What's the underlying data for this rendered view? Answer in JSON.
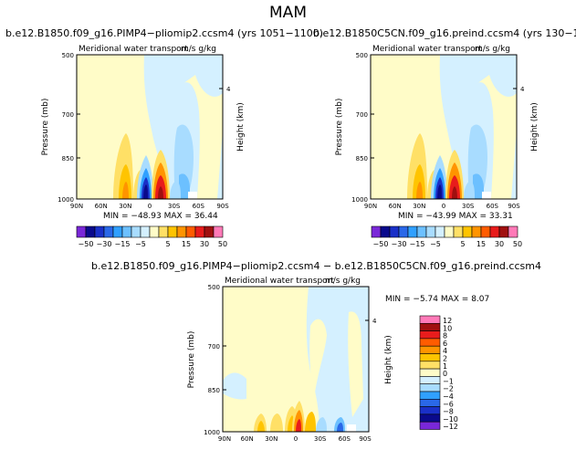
{
  "figure_title": "MAM",
  "panels": [
    {
      "title": "b.e12.B1850.f09_g16.PIMP4−pliomip2.ccsm4  (yrs 1051−1100)",
      "subtitle": "Meridional water transport",
      "units": "m/s g/kg",
      "ylabel": "Pressure (mb)",
      "ylabel_right": "Height (km)",
      "yticks": [
        "500",
        "700",
        "850",
        "1000"
      ],
      "yticks_right": [
        "4"
      ],
      "xticks": [
        "90N",
        "60N",
        "30N",
        "0",
        "30S",
        "60S",
        "90S"
      ],
      "stats_text": "MIN = −48.93   MAX =  36.44"
    },
    {
      "title": "b.e12.B1850C5CN.f09_g16.preind.ccsm4  (yrs 130−179)",
      "subtitle": "Meridional water transport",
      "units": "m/s g/kg",
      "ylabel": "Pressure (mb)",
      "ylabel_right": "Height (km)",
      "yticks": [
        "500",
        "700",
        "850",
        "1000"
      ],
      "yticks_right": [
        "4"
      ],
      "xticks": [
        "90N",
        "60N",
        "30N",
        "0",
        "30S",
        "60S",
        "90S"
      ],
      "stats_text": "MIN = −43.99   MAX =  33.31"
    },
    {
      "title": "b.e12.B1850.f09_g16.PIMP4−pliomip2.ccsm4 − b.e12.B1850C5CN.f09_g16.preind.ccsm4",
      "subtitle": "Meridional water transport",
      "units": "m/s g/kg",
      "ylabel": "Pressure (mb)",
      "ylabel_right": "Height (km)",
      "yticks": [
        "500",
        "700",
        "850",
        "1000"
      ],
      "yticks_right": [
        "4"
      ],
      "xticks": [
        "90N",
        "60N",
        "30N",
        "0",
        "30S",
        "60S",
        "90S"
      ],
      "stats_text": "MIN =  −5.74   MAX =   8.07"
    }
  ],
  "colorbar_top": {
    "labels": [
      "−50",
      "−30",
      "−15",
      "−5",
      "5",
      "15",
      "30",
      "50"
    ],
    "colors": [
      "#7a28d8",
      "#0a0a8c",
      "#1a30c8",
      "#2a68e8",
      "#30a0ff",
      "#6cc0ff",
      "#a8dcff",
      "#d4f0ff",
      "#fffcc8",
      "#ffe066",
      "#ffc400",
      "#ff9400",
      "#ff5c00",
      "#e81c1c",
      "#a01010",
      "#ff7ab8"
    ]
  },
  "colorbar_diff": {
    "labels": [
      "12",
      "10",
      "8",
      "6",
      "4",
      "2",
      "1",
      "0",
      "−1",
      "−2",
      "−4",
      "−6",
      "−8",
      "−10",
      "−12"
    ],
    "colors": [
      "#ff7ab8",
      "#a01010",
      "#e81c1c",
      "#ff5c00",
      "#ff9400",
      "#ffc400",
      "#ffe066",
      "#fffcc8",
      "#d4f0ff",
      "#a8dcff",
      "#30a0ff",
      "#2a68e8",
      "#1a30c8",
      "#0a0a8c",
      "#7a28d8"
    ]
  },
  "chart_data": [
    {
      "type": "heatmap",
      "title": "b.e12.B1850.f09_g16.PIMP4−pliomip2.ccsm4  (yrs 1051−1100)",
      "xlabel": "",
      "ylabel": "Pressure (mb)",
      "x_categories": [
        "90N",
        "60N",
        "30N",
        "0",
        "30S",
        "60S",
        "90S"
      ],
      "y_range_mb": [
        1000,
        500
      ],
      "min": -48.93,
      "max": 36.44,
      "contour_levels": [
        -50,
        -40,
        -30,
        -20,
        -15,
        -10,
        -5,
        0,
        5,
        10,
        15,
        20,
        30,
        40,
        50
      ],
      "features": [
        {
          "lat": 38,
          "p_low": 1000,
          "p_high": 900,
          "value": 10
        },
        {
          "lat": 20,
          "p_low": 1000,
          "p_high": 850,
          "value": 5
        },
        {
          "lat": 8,
          "p_low": 1000,
          "p_high": 900,
          "value": -40
        },
        {
          "lat": -6,
          "p_low": 1000,
          "p_high": 860,
          "value": 30
        },
        {
          "lat": -36,
          "p_low": 1000,
          "p_high": 900,
          "value": -15
        },
        {
          "lat": -42,
          "p_low": 950,
          "p_high": 740,
          "value": -5
        },
        {
          "lat": -52,
          "p_low": 1000,
          "p_high": 950,
          "value": 5
        }
      ]
    },
    {
      "type": "heatmap",
      "title": "b.e12.B1850C5CN.f09_g16.preind.ccsm4  (yrs 130−179)",
      "xlabel": "",
      "ylabel": "Pressure (mb)",
      "x_categories": [
        "90N",
        "60N",
        "30N",
        "0",
        "30S",
        "60S",
        "90S"
      ],
      "y_range_mb": [
        1000,
        500
      ],
      "min": -43.99,
      "max": 33.31,
      "contour_levels": [
        -50,
        -40,
        -30,
        -20,
        -15,
        -10,
        -5,
        0,
        5,
        10,
        15,
        20,
        30,
        40,
        50
      ],
      "features": [
        {
          "lat": 38,
          "p_low": 1000,
          "p_high": 900,
          "value": 10
        },
        {
          "lat": 20,
          "p_low": 1000,
          "p_high": 850,
          "value": 5
        },
        {
          "lat": 8,
          "p_low": 1000,
          "p_high": 900,
          "value": -40
        },
        {
          "lat": -6,
          "p_low": 1000,
          "p_high": 860,
          "value": 30
        },
        {
          "lat": -36,
          "p_low": 1000,
          "p_high": 900,
          "value": -15
        },
        {
          "lat": -42,
          "p_low": 950,
          "p_high": 740,
          "value": -5
        },
        {
          "lat": -52,
          "p_low": 1000,
          "p_high": 950,
          "value": 5
        }
      ]
    },
    {
      "type": "heatmap",
      "title": "b.e12.B1850.f09_g16.PIMP4−pliomip2.ccsm4 − b.e12.B1850C5CN.f09_g16.preind.ccsm4",
      "xlabel": "",
      "ylabel": "Pressure (mb)",
      "x_categories": [
        "90N",
        "60N",
        "30N",
        "0",
        "30S",
        "60S",
        "90S"
      ],
      "y_range_mb": [
        1000,
        500
      ],
      "min": -5.74,
      "max": 8.07,
      "contour_levels": [
        -12,
        -10,
        -8,
        -6,
        -4,
        -2,
        -1,
        0,
        1,
        2,
        4,
        6,
        8,
        10,
        12
      ],
      "features": [
        {
          "lat": 25,
          "p_low": 1000,
          "p_high": 950,
          "value": 4
        },
        {
          "lat": 5,
          "p_low": 1000,
          "p_high": 900,
          "value": 2
        },
        {
          "lat": 0,
          "p_low": 1000,
          "p_high": 950,
          "value": 8
        },
        {
          "lat": -5,
          "p_low": 1000,
          "p_high": 950,
          "value": -4
        },
        {
          "lat": -30,
          "p_low": 1000,
          "p_high": 880,
          "value": -1
        },
        {
          "lat": -60,
          "p_low": 1000,
          "p_high": 950,
          "value": -8
        }
      ]
    }
  ]
}
